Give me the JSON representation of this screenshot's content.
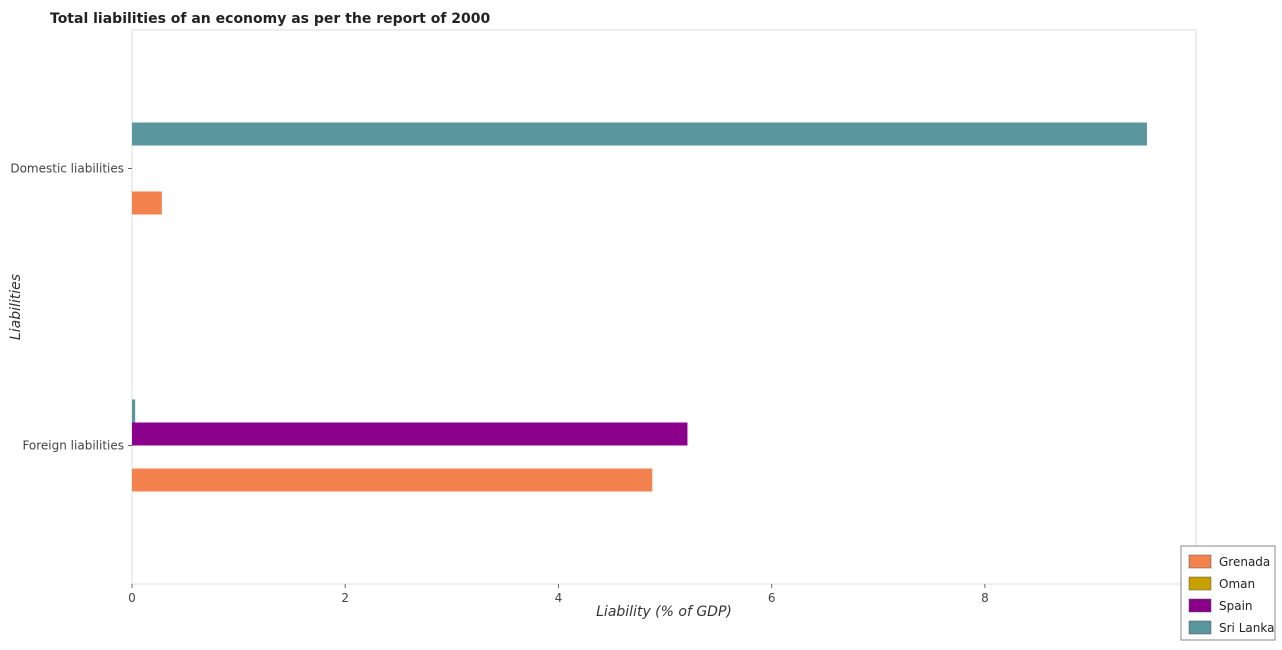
{
  "colors": {
    "Grenada": "#f4824f",
    "Oman": "#c8a000",
    "Spain": "#8b008b",
    "Sri Lanka": "#5a969e"
  },
  "chart_data": {
    "type": "bar",
    "orientation": "horizontal",
    "title": "Total liabilities of an economy as per the report of 2000",
    "xlabel": "Liability (% of GDP)",
    "ylabel": "Liabilities",
    "categories": [
      "Domestic liabilities",
      "Foreign liabilities"
    ],
    "series": [
      {
        "name": "Grenada",
        "values": [
          0.28,
          4.88
        ]
      },
      {
        "name": "Oman",
        "values": [
          0,
          0
        ]
      },
      {
        "name": "Spain",
        "values": [
          0,
          5.21
        ]
      },
      {
        "name": "Sri Lanka",
        "values": [
          9.52,
          0.03
        ]
      }
    ],
    "xlim": [
      0,
      9.98
    ],
    "xticks": [
      0,
      2,
      4,
      6,
      8
    ],
    "grid": false,
    "legend": "bottom-right"
  }
}
